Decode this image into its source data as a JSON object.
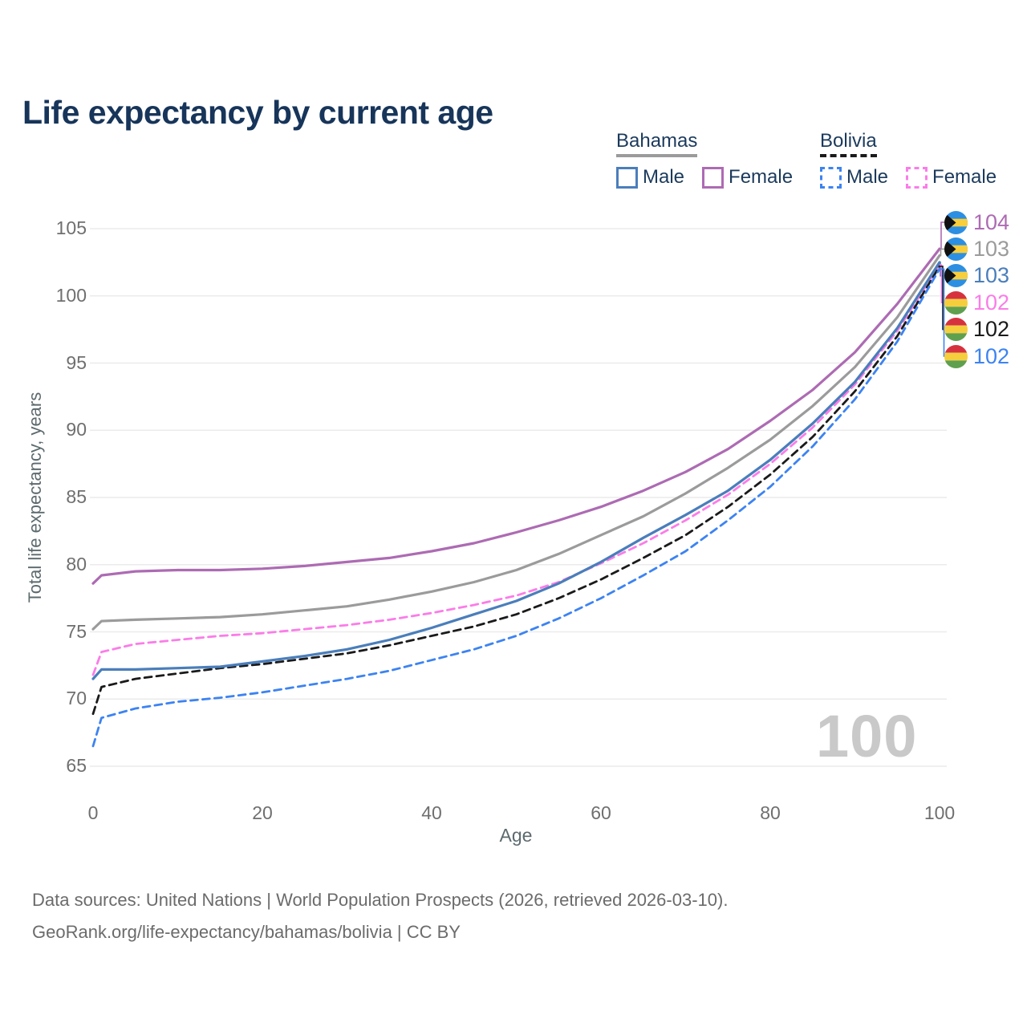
{
  "title": "Life expectancy by current age",
  "legend": {
    "groups": [
      {
        "name": "Bahamas",
        "underline_style": "solid",
        "underline_color": "#9b9b9b",
        "items": [
          {
            "label": "Male",
            "color": "#4a7ebb",
            "style": "solid"
          },
          {
            "label": "Female",
            "color": "#ad6bb3",
            "style": "solid"
          }
        ]
      },
      {
        "name": "Bolivia",
        "underline_style": "dashed",
        "underline_color": "#1a1a1a",
        "items": [
          {
            "label": "Male",
            "color": "#3c83f2",
            "style": "dashed"
          },
          {
            "label": "Female",
            "color": "#fb7ce8",
            "style": "dashed"
          }
        ]
      }
    ]
  },
  "chart_data": {
    "type": "line",
    "xlabel": "Age",
    "ylabel": "Total life expectancy, years",
    "xlim": [
      0,
      100
    ],
    "ylim": [
      65,
      105
    ],
    "xticks": [
      0,
      20,
      40,
      60,
      80,
      100
    ],
    "yticks": [
      65,
      70,
      75,
      80,
      85,
      90,
      95,
      100,
      105
    ],
    "grid": "horizontal",
    "x": [
      0,
      1,
      5,
      10,
      15,
      20,
      25,
      30,
      35,
      40,
      45,
      50,
      55,
      60,
      65,
      70,
      75,
      80,
      85,
      90,
      95,
      100
    ],
    "series": [
      {
        "name": "Bahamas",
        "country": "Bahamas",
        "sex": "Both",
        "color": "#9b9b9b",
        "line_style": "solid",
        "values": [
          75.2,
          75.8,
          75.9,
          76.0,
          76.1,
          76.3,
          76.6,
          76.9,
          77.4,
          78.0,
          78.7,
          79.6,
          80.8,
          82.2,
          83.6,
          85.3,
          87.2,
          89.3,
          91.8,
          94.7,
          98.4,
          103.0
        ]
      },
      {
        "name": "Bahamas Female",
        "country": "Bahamas",
        "sex": "Female",
        "color": "#ad6bb3",
        "line_style": "solid",
        "values": [
          78.6,
          79.2,
          79.5,
          79.6,
          79.6,
          79.7,
          79.9,
          80.2,
          80.5,
          81.0,
          81.6,
          82.4,
          83.3,
          84.3,
          85.5,
          86.9,
          88.6,
          90.7,
          93.0,
          95.8,
          99.4,
          103.5
        ]
      },
      {
        "name": "Bolivia Female",
        "country": "Bolivia",
        "sex": "Female",
        "color": "#fb7ce8",
        "line_style": "dashed",
        "values": [
          71.8,
          73.5,
          74.1,
          74.4,
          74.7,
          74.9,
          75.2,
          75.5,
          75.9,
          76.4,
          77.0,
          77.7,
          78.7,
          80.1,
          81.6,
          83.3,
          85.2,
          87.5,
          90.2,
          93.4,
          97.4,
          102.3
        ]
      },
      {
        "name": "Bolivia",
        "country": "Bolivia",
        "sex": "Both",
        "color": "#1a1a1a",
        "line_style": "dashed",
        "values": [
          68.9,
          70.9,
          71.5,
          71.9,
          72.3,
          72.6,
          73.0,
          73.4,
          74.0,
          74.7,
          75.4,
          76.3,
          77.5,
          78.9,
          80.5,
          82.2,
          84.3,
          86.7,
          89.5,
          92.9,
          97.0,
          102.2
        ]
      },
      {
        "name": "Bolivia Male",
        "country": "Bolivia",
        "sex": "Male",
        "color": "#3c83f2",
        "line_style": "dashed",
        "values": [
          66.5,
          68.6,
          69.3,
          69.8,
          70.1,
          70.5,
          71.0,
          71.5,
          72.1,
          72.9,
          73.7,
          74.7,
          76.0,
          77.5,
          79.2,
          81.0,
          83.3,
          85.8,
          88.8,
          92.3,
          96.6,
          102.0
        ]
      },
      {
        "name": "Bahamas Male",
        "country": "Bahamas",
        "sex": "Male",
        "color": "#4a7ebb",
        "line_style": "solid",
        "values": [
          71.5,
          72.2,
          72.2,
          72.3,
          72.4,
          72.8,
          73.2,
          73.7,
          74.4,
          75.3,
          76.3,
          77.3,
          78.6,
          80.2,
          82.0,
          83.7,
          85.5,
          87.8,
          90.5,
          93.6,
          97.6,
          102.5
        ]
      }
    ],
    "end_labels": [
      {
        "value": "104",
        "series": "Bahamas Female",
        "flag": "bahamas",
        "color": "#ad6bb3"
      },
      {
        "value": "103",
        "series": "Bahamas",
        "flag": "bahamas",
        "color": "#9b9b9b"
      },
      {
        "value": "103",
        "series": "Bahamas Male",
        "flag": "bahamas",
        "color": "#4a7ebb"
      },
      {
        "value": "102",
        "series": "Bolivia Female",
        "flag": "bolivia",
        "color": "#fb7ce8"
      },
      {
        "value": "102",
        "series": "Bolivia",
        "flag": "bolivia",
        "color": "#1a1a1a"
      },
      {
        "value": "102",
        "series": "Bolivia Male",
        "flag": "bolivia",
        "color": "#3c83f2"
      }
    ],
    "hover_age_indicator": "100"
  },
  "flags": {
    "bahamas": {
      "aqua": "#2d8fe2",
      "gold": "#f8ce3c",
      "black": "#111111"
    },
    "bolivia": {
      "red": "#d6323e",
      "yellow": "#f5ce3e",
      "green": "#5fa04e"
    }
  },
  "footer": {
    "line1": "Data sources: United Nations | World Population Prospects (2026, retrieved 2026-03-10).",
    "line2": "GeoRank.org/life-expectancy/bahamas/bolivia | CC BY"
  }
}
